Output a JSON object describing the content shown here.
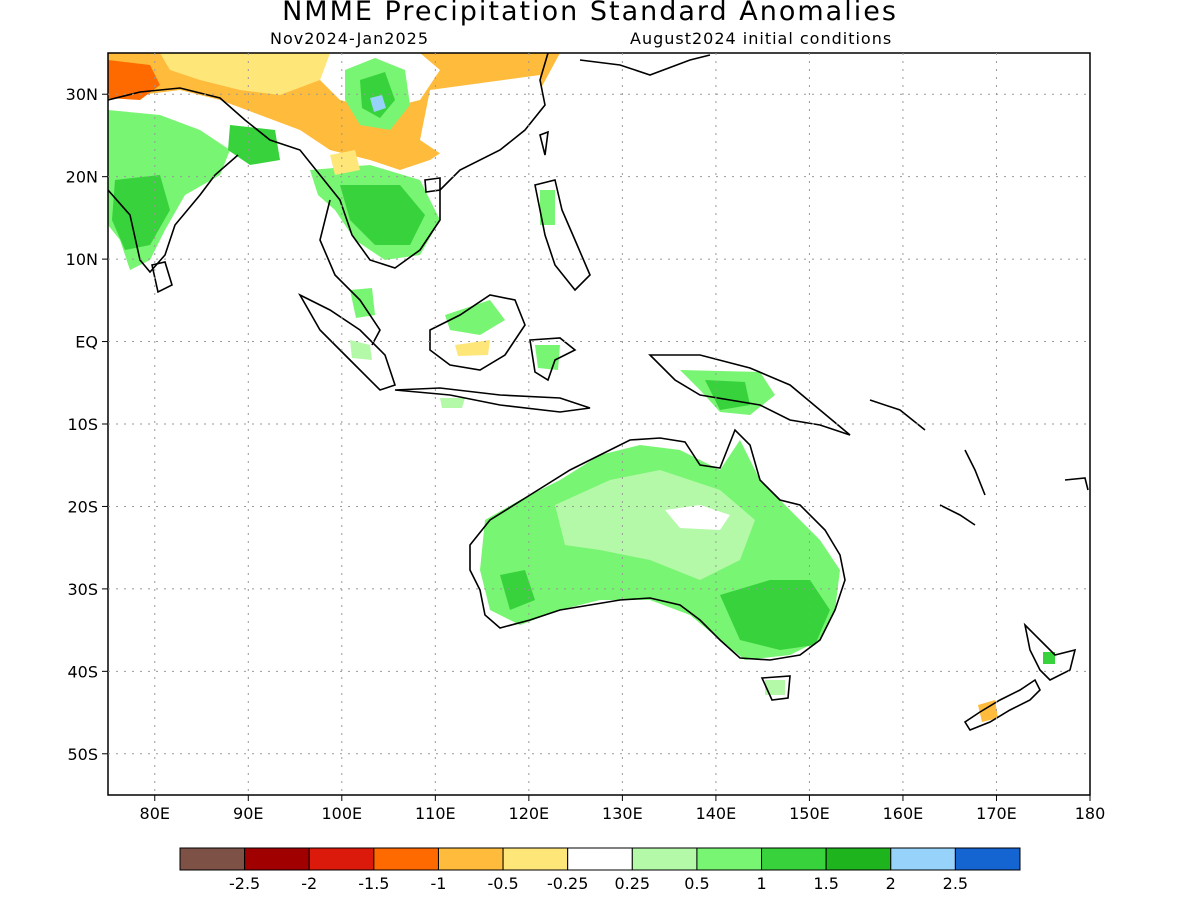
{
  "title": "NMME Precipitation Standard Anomalies",
  "subtitle_left": "Nov2024-Jan2025",
  "subtitle_right": "August2024 initial conditions",
  "map": {
    "lon_range": [
      75,
      180
    ],
    "lat_range": [
      -55,
      35
    ],
    "lon_ticks": [
      {
        "value": 80,
        "label": "80E"
      },
      {
        "value": 90,
        "label": "90E"
      },
      {
        "value": 100,
        "label": "100E"
      },
      {
        "value": 110,
        "label": "110E"
      },
      {
        "value": 120,
        "label": "120E"
      },
      {
        "value": 130,
        "label": "130E"
      },
      {
        "value": 140,
        "label": "140E"
      },
      {
        "value": 150,
        "label": "150E"
      },
      {
        "value": 160,
        "label": "160E"
      },
      {
        "value": 170,
        "label": "170E"
      },
      {
        "value": 180,
        "label": "180"
      }
    ],
    "lat_ticks": [
      {
        "value": 30,
        "label": "30N"
      },
      {
        "value": 20,
        "label": "20N"
      },
      {
        "value": 10,
        "label": "10N"
      },
      {
        "value": 0,
        "label": "EQ"
      },
      {
        "value": -10,
        "label": "10S"
      },
      {
        "value": -20,
        "label": "20S"
      },
      {
        "value": -30,
        "label": "30S"
      },
      {
        "value": -40,
        "label": "40S"
      },
      {
        "value": -50,
        "label": "50S"
      }
    ]
  },
  "colorbar": {
    "colors": [
      "#7d5146",
      "#a00000",
      "#dc1a0c",
      "#ff6a00",
      "#ffbb3c",
      "#ffe678",
      "#ffffff",
      "#b4f9a8",
      "#78f572",
      "#37d23c",
      "#1eb41e",
      "#96d2fa",
      "#1464d2"
    ],
    "labels": [
      "-2.5",
      "-2",
      "-1.5",
      "-1",
      "-0.5",
      "-0.25",
      "0.25",
      "0.5",
      "1",
      "1.5",
      "2",
      "2.5"
    ]
  },
  "colors": {
    "land_outline": "#000000",
    "grid": "#999999"
  }
}
